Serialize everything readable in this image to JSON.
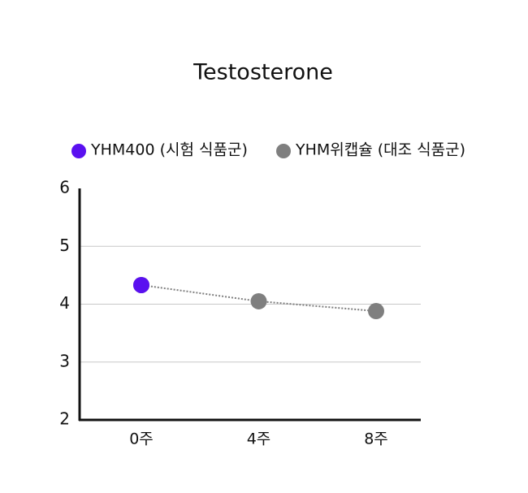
{
  "chart_data": {
    "type": "line",
    "title": "Testosterone",
    "categories": [
      "0주",
      "4주",
      "8주"
    ],
    "series": [
      {
        "name": "YHM400 (시험 식품군)",
        "color": "#5a10f0",
        "values": [
          4.33,
          null,
          null
        ]
      },
      {
        "name": "YHM위캡슐 (대조 식품군)",
        "color": "#7f7f7f",
        "values": [
          4.33,
          4.05,
          3.88
        ]
      }
    ],
    "ylim": [
      2,
      6
    ],
    "yticks": [
      2,
      3,
      4,
      5,
      6
    ],
    "grid": true
  }
}
